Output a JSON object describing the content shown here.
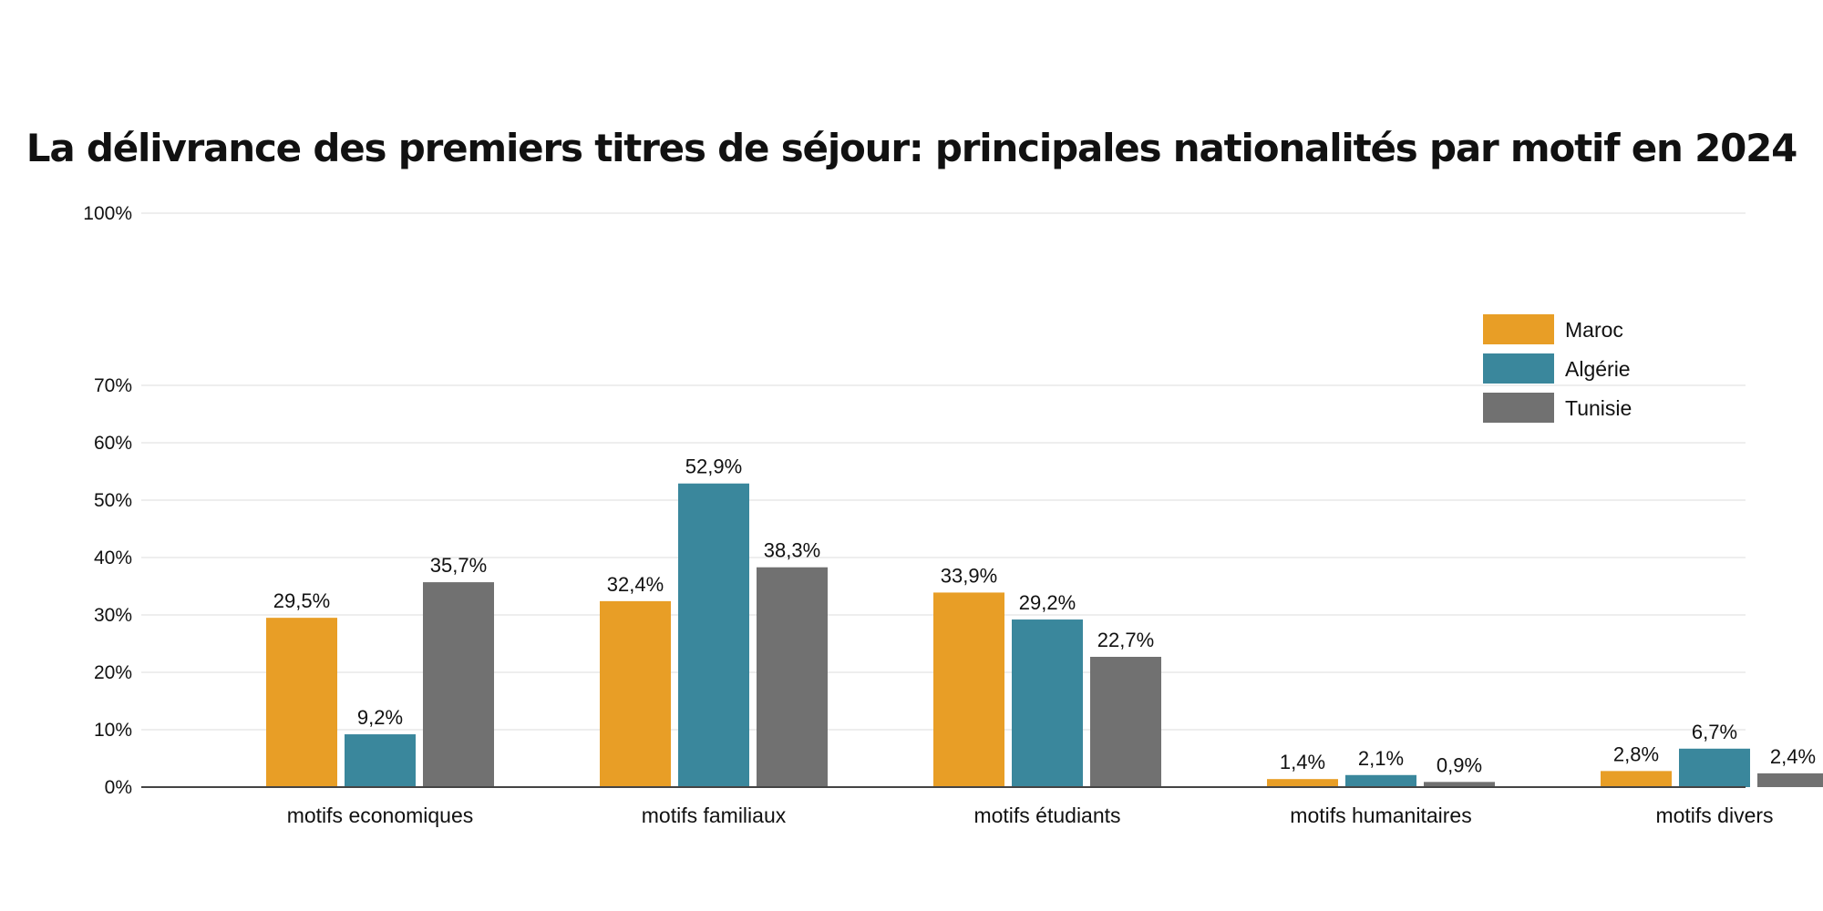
{
  "chart_data": {
    "type": "bar",
    "title": "La délivrance des premiers titres de séjour: principales nationalités par motif en 2024",
    "xlabel": "",
    "ylabel": "",
    "ylim": [
      0,
      100
    ],
    "yticks": [
      0,
      10,
      20,
      30,
      40,
      50,
      60,
      70,
      100
    ],
    "ytick_labels": [
      "0%",
      "10%",
      "20%",
      "30%",
      "40%",
      "50%",
      "60%",
      "70%",
      "100%"
    ],
    "grid": true,
    "legend_position": "top-right",
    "categories": [
      "motifs economiques",
      "motifs familiaux",
      "motifs étudiants",
      "motifs humanitaires",
      "motifs divers"
    ],
    "series": [
      {
        "name": "Maroc",
        "color": "#E89E26",
        "values": [
          29.5,
          32.4,
          33.9,
          1.4,
          2.8
        ],
        "labels": [
          "29,5%",
          "32,4%",
          "33,9%",
          "1,4%",
          "2,8%"
        ]
      },
      {
        "name": "Algérie",
        "color": "#3A879C",
        "values": [
          9.2,
          52.9,
          29.2,
          2.1,
          6.7
        ],
        "labels": [
          "9,2%",
          "52,9%",
          "29,2%",
          "2,1%",
          "6,7%"
        ]
      },
      {
        "name": "Tunisie",
        "color": "#717171",
        "values": [
          35.7,
          38.3,
          22.7,
          0.9,
          2.4
        ],
        "labels": [
          "35,7%",
          "38,3%",
          "22,7%",
          "0,9%",
          "2,4%"
        ]
      }
    ]
  }
}
